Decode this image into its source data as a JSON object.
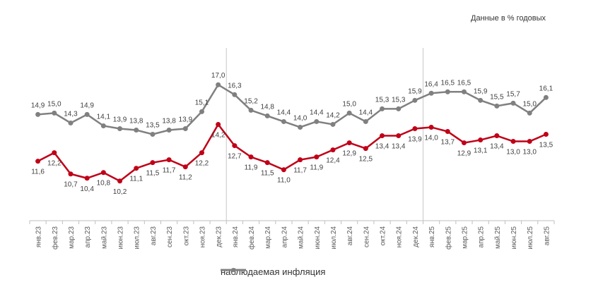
{
  "note": "Данные в % годовых",
  "chart_data": {
    "type": "line",
    "categories": [
      "янв.23",
      "фев.23",
      "мар.23",
      "апр.23",
      "май.23",
      "июн.23",
      "июл.23",
      "авг.23",
      "сен.23",
      "окт.23",
      "ноя.23",
      "дек.23",
      "янв.24",
      "фев.24",
      "мар.24",
      "апр.24",
      "май.24",
      "июн.24",
      "июл.24",
      "авг.24",
      "сен.24",
      "окт.24",
      "ноя.24",
      "дек.24",
      "янв.25",
      "фев.25",
      "мар.25",
      "апр.25",
      "май.25",
      "июн.25",
      "июл.25",
      "авг.25"
    ],
    "series": [
      {
        "name": "наблюдаемая инфляция",
        "color": "#808080",
        "values": [
          14.9,
          15.0,
          14.3,
          14.9,
          14.1,
          13.9,
          13.8,
          13.5,
          13.8,
          13.9,
          15.1,
          17.0,
          16.3,
          15.2,
          14.8,
          14.4,
          14.0,
          14.4,
          14.2,
          15.0,
          14.4,
          15.3,
          15.3,
          15.9,
          16.4,
          16.5,
          16.5,
          15.9,
          15.5,
          15.7,
          15.0,
          16.1
        ]
      },
      {
        "color": "#c00018",
        "values": [
          11.6,
          12.2,
          10.7,
          10.4,
          10.8,
          10.2,
          11.1,
          11.5,
          11.7,
          11.2,
          12.2,
          14.2,
          12.7,
          11.9,
          11.5,
          11.0,
          11.7,
          11.9,
          12.4,
          12.9,
          12.5,
          13.4,
          13.4,
          13.9,
          14.0,
          13.7,
          12.9,
          13.1,
          13.4,
          13.0,
          13.0,
          13.5
        ]
      }
    ],
    "ylim": [
      7.4,
      20
    ],
    "grid": false,
    "vertical_separators_after": [
      "дек.23",
      "дек.24"
    ],
    "legend_position": "bottom"
  }
}
